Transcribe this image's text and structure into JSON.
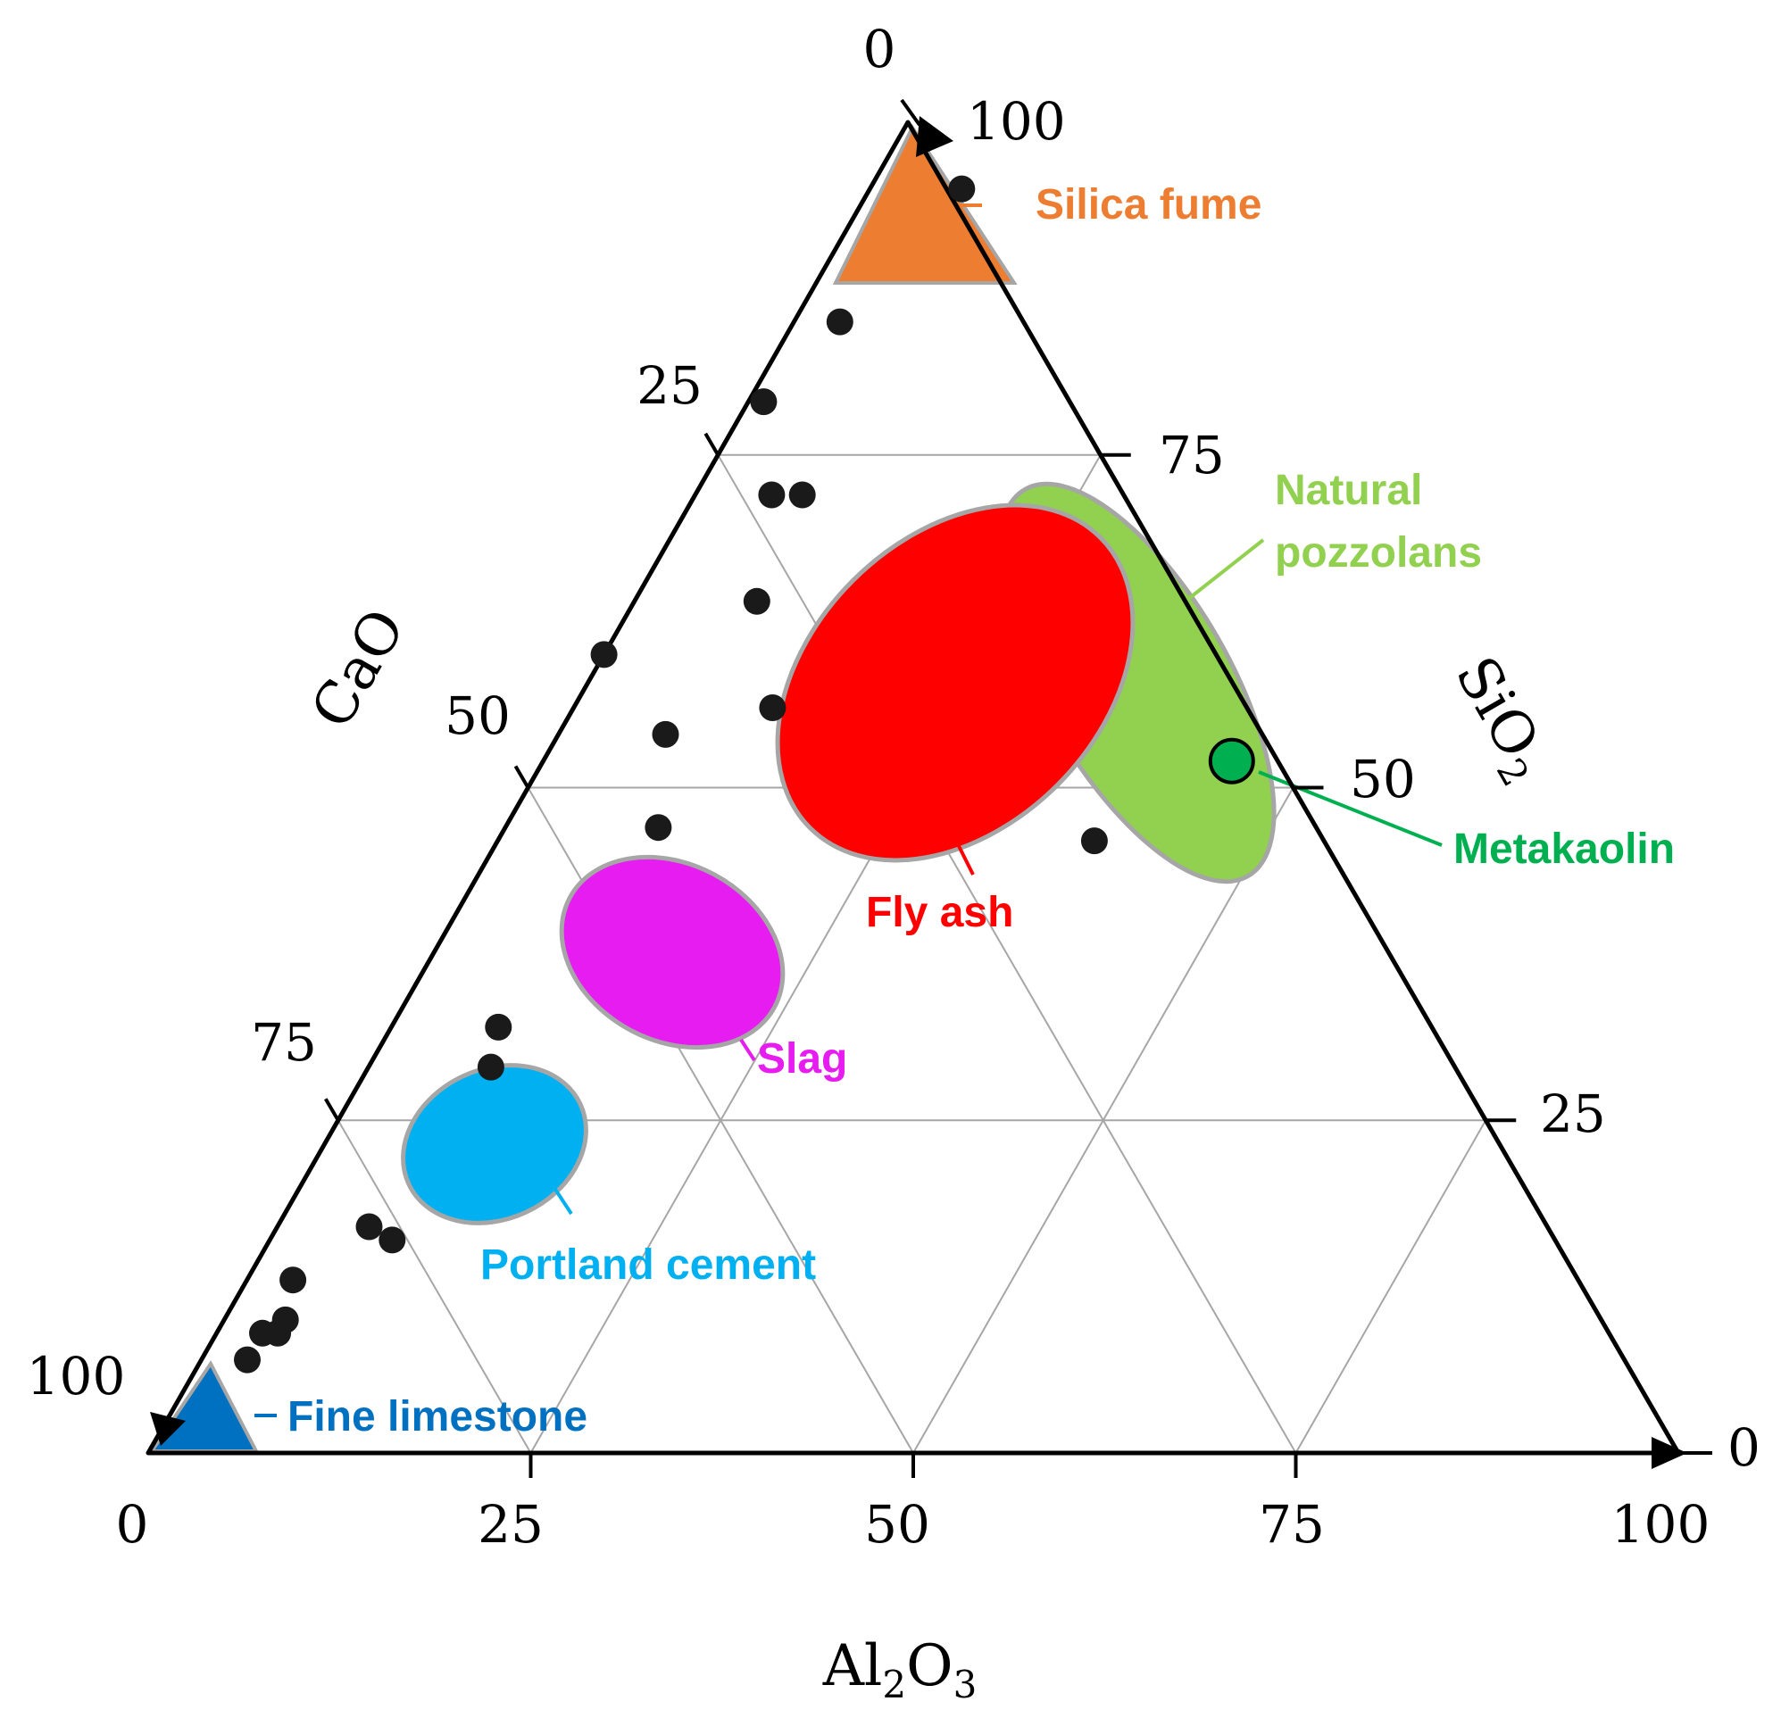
{
  "chart_data": {
    "type": "ternary",
    "axes": {
      "bottom": {
        "label_main": "Al",
        "label_sub1": "2",
        "label_mid": "O",
        "label_sub2": "3",
        "ticks": [
          "0",
          "25",
          "50",
          "75",
          "100"
        ]
      },
      "left": {
        "label": "CaO",
        "ticks": [
          "0",
          "25",
          "50",
          "75",
          "100"
        ]
      },
      "right": {
        "label_main": "SiO",
        "label_sub": "2",
        "ticks": [
          "100",
          "75",
          "50",
          "25",
          "0"
        ]
      }
    },
    "grid": true,
    "regions": [
      {
        "name": "Silica fume",
        "shape": "triangle",
        "color": "#ed7d31",
        "label_color": "#ed7d31"
      },
      {
        "name": "Natural pozzolans",
        "shape": "ellipse",
        "color": "#92d050",
        "label_color": "#92d050",
        "label_lines": [
          "Natural",
          "pozzolans"
        ]
      },
      {
        "name": "Fly ash",
        "shape": "ellipse",
        "color": "#ff0000",
        "label_color": "#ff0000"
      },
      {
        "name": "Slag",
        "shape": "ellipse",
        "color": "#e61cf0",
        "label_color": "#e61cf0"
      },
      {
        "name": "Portland cement",
        "shape": "ellipse",
        "color": "#00b0f0",
        "label_color": "#00b0f0"
      },
      {
        "name": "Fine limestone",
        "shape": "triangle",
        "color": "#0070c0",
        "label_color": "#0070c0"
      },
      {
        "name": "Metakaolin",
        "shape": "point",
        "color": "#00b050",
        "label_color": "#00b050"
      }
    ],
    "points": [
      {
        "SiO2": 95,
        "Al2O3": 6,
        "CaO": -1
      },
      {
        "SiO2": 85,
        "Al2O3": 3,
        "CaO": 12
      },
      {
        "SiO2": 79,
        "Al2O3": 1,
        "CaO": 20
      },
      {
        "SiO2": 72,
        "Al2O3": 5,
        "CaO": 23
      },
      {
        "SiO2": 72,
        "Al2O3": 7,
        "CaO": 21
      },
      {
        "SiO2": 64,
        "Al2O3": 8,
        "CaO": 28
      },
      {
        "SiO2": 60,
        "Al2O3": 0,
        "CaO": 40
      },
      {
        "SiO2": 56,
        "Al2O3": 13,
        "CaO": 31
      },
      {
        "SiO2": 54,
        "Al2O3": 7,
        "CaO": 39
      },
      {
        "SiO2": 47,
        "Al2O3": 10,
        "CaO": 43
      },
      {
        "SiO2": 46,
        "Al2O3": 39,
        "CaO": 15
      },
      {
        "SiO2": 32,
        "Al2O3": 7,
        "CaO": 61
      },
      {
        "SiO2": 29,
        "Al2O3": 8,
        "CaO": 63
      },
      {
        "SiO2": 17,
        "Al2O3": 6,
        "CaO": 77
      },
      {
        "SiO2": 16,
        "Al2O3": 8,
        "CaO": 76
      },
      {
        "SiO2": 13,
        "Al2O3": 3,
        "CaO": 84
      },
      {
        "SiO2": 10,
        "Al2O3": 4,
        "CaO": 86
      },
      {
        "SiO2": 9,
        "Al2O3": 4,
        "CaO": 87
      },
      {
        "SiO2": 9,
        "Al2O3": 3,
        "CaO": 88
      },
      {
        "SiO2": 7,
        "Al2O3": 3,
        "CaO": 90
      }
    ],
    "metakaolin": {
      "SiO2": 52,
      "Al2O3": 45,
      "CaO": 3
    }
  }
}
